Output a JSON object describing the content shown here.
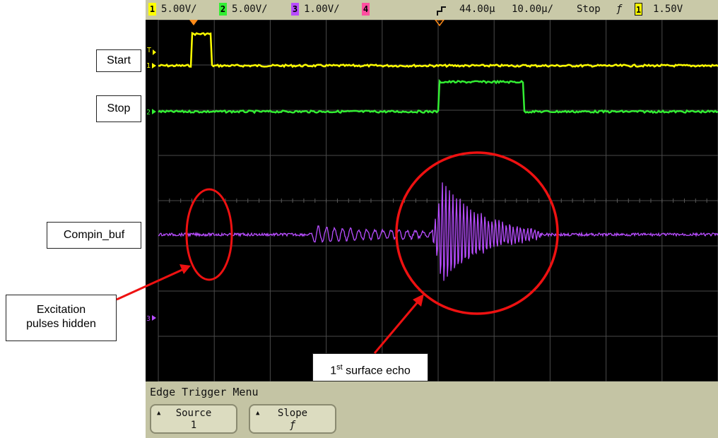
{
  "status_bar": {
    "ch1": {
      "num": "1",
      "scale": "5.00V/",
      "color": "#ffff00"
    },
    "ch2": {
      "num": "2",
      "scale": "5.00V/",
      "color": "#33ee33"
    },
    "ch3": {
      "num": "3",
      "scale": "1.00V/",
      "color": "#b84dff"
    },
    "ch4": {
      "num": "4",
      "color": "#ff4fa0"
    },
    "delay": "44.00µ",
    "timebase": "10.00µ/",
    "run_state": "Stop",
    "trigger_slope_symbol": "ƒ",
    "trigger_source": "1",
    "trigger_level": "1.50V"
  },
  "traces": {
    "ch1": {
      "color": "#ffff00"
    },
    "ch2": {
      "color": "#33ee33"
    },
    "ch3": {
      "color": "#b84dff"
    }
  },
  "markers": {
    "ch1": "1",
    "ch2": "2",
    "ch3": "3",
    "trigger": "T"
  },
  "menu": {
    "title": "Edge Trigger Menu",
    "softkeys": [
      {
        "label": "Source",
        "value": "1"
      },
      {
        "label": "Slope",
        "value": "ƒ"
      }
    ]
  },
  "annotations": {
    "start": "Start",
    "stop": "Stop",
    "compin": "Compin_buf",
    "excitation_line1": "Excitation",
    "excitation_line2": "pulses hidden",
    "echo_prefix": "1",
    "echo_sup": "st",
    "echo_suffix": " surface echo",
    "annotation_color": "#ee1111"
  }
}
